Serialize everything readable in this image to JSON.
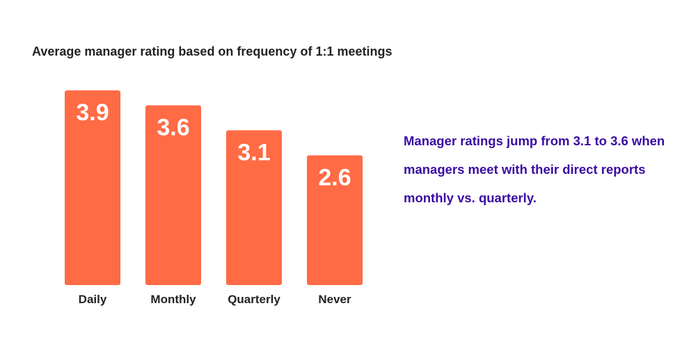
{
  "chart_data": {
    "type": "bar",
    "title": "Average manager rating based on frequency of 1:1 meetings",
    "categories": [
      "Daily",
      "Monthly",
      "Quarterly",
      "Never"
    ],
    "values": [
      3.9,
      3.6,
      3.1,
      2.6
    ],
    "data_labels": [
      "3.9",
      "3.6",
      "3.1",
      "2.6"
    ],
    "ylim": [
      0,
      3.9
    ],
    "grid": false,
    "bar_color": "#ff6b45",
    "label_color": "#ffffff"
  },
  "annotation": "Manager ratings jump from 3.1 to 3.6 when managers meet with their direct reports monthly vs. quarterly.",
  "annotation_color": "#3a0ca3"
}
